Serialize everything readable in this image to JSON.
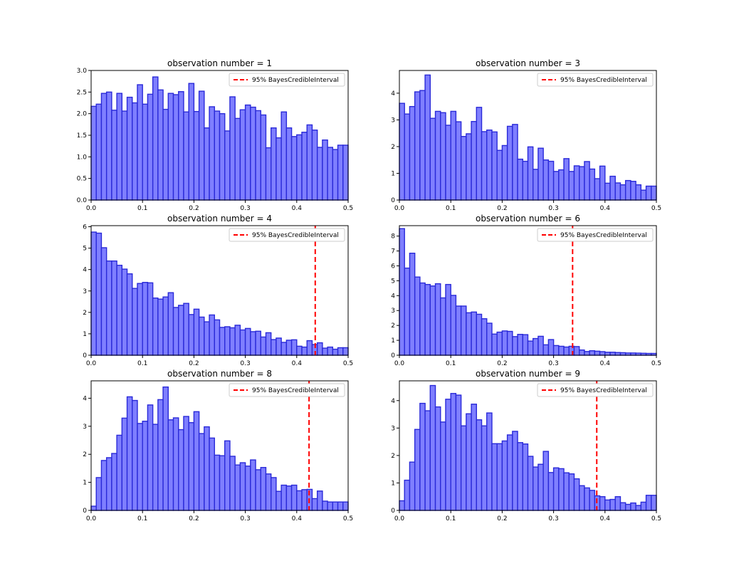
{
  "chart_data": [
    {
      "type": "bar",
      "title": "observation number = 1",
      "xlim": [
        0,
        0.5
      ],
      "ylim": [
        0,
        3.0
      ],
      "xticks": [
        "0.0",
        "0.1",
        "0.2",
        "0.3",
        "0.4",
        "0.5"
      ],
      "yticks": [
        "0.0",
        "0.5",
        "1.0",
        "1.5",
        "2.0",
        "2.5",
        "3.0"
      ],
      "legend": "95% BayesCredibleInterval",
      "legend_position": "top-right",
      "credible_interval": null,
      "bin_width": 0.01,
      "values": [
        2.17,
        2.22,
        2.47,
        2.5,
        2.08,
        2.47,
        2.06,
        2.38,
        2.25,
        2.67,
        2.22,
        2.45,
        2.85,
        2.55,
        2.1,
        2.47,
        2.44,
        2.51,
        2.04,
        2.7,
        2.05,
        2.52,
        1.67,
        2.16,
        2.06,
        2.0,
        1.6,
        2.39,
        1.89,
        2.09,
        2.2,
        2.15,
        2.07,
        1.97,
        1.21,
        1.67,
        1.44,
        2.04,
        1.67,
        1.47,
        1.51,
        1.57,
        1.74,
        1.62,
        1.22,
        1.39,
        1.22,
        1.17,
        1.27,
        1.27
      ]
    },
    {
      "type": "bar",
      "title": "observation number = 3",
      "xlim": [
        0,
        0.5
      ],
      "ylim": [
        0,
        4.85
      ],
      "xticks": [
        "0.0",
        "0.1",
        "0.2",
        "0.3",
        "0.4",
        "0.5"
      ],
      "yticks": [
        "0",
        "1",
        "2",
        "3",
        "4"
      ],
      "legend": "95% BayesCredibleInterval",
      "legend_position": "top-right",
      "credible_interval": null,
      "bin_width": 0.01,
      "values": [
        3.62,
        3.22,
        3.5,
        4.05,
        4.1,
        4.68,
        3.06,
        3.32,
        3.27,
        2.8,
        3.32,
        2.93,
        2.38,
        2.48,
        2.94,
        3.47,
        2.56,
        2.62,
        2.55,
        1.86,
        2.04,
        2.76,
        2.83,
        1.53,
        1.45,
        1.99,
        1.15,
        1.94,
        1.5,
        1.45,
        1.07,
        1.13,
        1.55,
        1.07,
        1.28,
        1.25,
        1.44,
        1.16,
        0.8,
        1.27,
        0.63,
        0.89,
        0.64,
        0.57,
        0.73,
        0.7,
        0.57,
        0.37,
        0.52,
        0.52
      ]
    },
    {
      "type": "bar",
      "title": "observation number = 4",
      "xlim": [
        0,
        0.5
      ],
      "ylim": [
        0,
        6.05
      ],
      "xticks": [
        "0.0",
        "0.1",
        "0.2",
        "0.3",
        "0.4",
        "0.5"
      ],
      "yticks": [
        "0",
        "1",
        "2",
        "3",
        "4",
        "5",
        "6"
      ],
      "legend": "95% BayesCredibleInterval",
      "legend_position": "top-right",
      "credible_interval": 0.436,
      "bin_width": 0.01,
      "values": [
        5.75,
        5.7,
        5.02,
        4.4,
        4.4,
        4.2,
        4.02,
        3.8,
        3.12,
        3.35,
        3.4,
        3.38,
        2.67,
        2.62,
        2.72,
        2.92,
        2.23,
        2.33,
        2.42,
        1.9,
        2.15,
        1.78,
        1.56,
        1.88,
        1.65,
        1.3,
        1.33,
        1.28,
        1.4,
        1.18,
        1.25,
        1.1,
        1.12,
        0.85,
        1.05,
        0.73,
        0.8,
        0.6,
        0.7,
        0.72,
        0.42,
        0.38,
        0.68,
        0.5,
        0.58,
        0.33,
        0.38,
        0.28,
        0.35,
        0.35
      ]
    },
    {
      "type": "bar",
      "title": "observation number = 6",
      "xlim": [
        0,
        0.5
      ],
      "ylim": [
        0,
        8.7
      ],
      "xticks": [
        "0.0",
        "0.1",
        "0.2",
        "0.3",
        "0.4",
        "0.5"
      ],
      "yticks": [
        "0",
        "1",
        "2",
        "3",
        "4",
        "5",
        "6",
        "7",
        "8"
      ],
      "legend": "95% BayesCredibleInterval",
      "legend_position": "top-right",
      "credible_interval": 0.337,
      "bin_width": 0.01,
      "values": [
        8.5,
        5.85,
        6.85,
        5.25,
        4.85,
        4.75,
        4.65,
        4.8,
        3.85,
        4.75,
        4.02,
        3.3,
        3.3,
        2.85,
        2.9,
        2.75,
        2.45,
        2.15,
        1.42,
        1.55,
        1.63,
        1.6,
        1.25,
        1.4,
        1.38,
        0.95,
        1.12,
        1.27,
        0.7,
        1.05,
        0.65,
        0.6,
        0.55,
        0.6,
        0.58,
        0.35,
        0.25,
        0.3,
        0.27,
        0.24,
        0.2,
        0.2,
        0.18,
        0.17,
        0.15,
        0.15,
        0.14,
        0.13,
        0.12,
        0.12
      ]
    },
    {
      "type": "bar",
      "title": "observation number = 8",
      "xlim": [
        0,
        0.5
      ],
      "ylim": [
        0,
        4.62
      ],
      "xticks": [
        "0.0",
        "0.1",
        "0.2",
        "0.3",
        "0.4",
        "0.5"
      ],
      "yticks": [
        "0",
        "1",
        "2",
        "3",
        "4"
      ],
      "legend": "95% BayesCredibleInterval",
      "legend_position": "top-right",
      "credible_interval": 0.424,
      "bin_width": 0.01,
      "values": [
        0.15,
        1.17,
        1.78,
        1.88,
        2.03,
        2.68,
        3.29,
        4.05,
        3.92,
        3.1,
        3.18,
        3.76,
        3.07,
        3.95,
        4.4,
        3.23,
        3.3,
        2.88,
        3.35,
        3.13,
        3.52,
        2.74,
        2.98,
        2.58,
        1.97,
        1.95,
        2.48,
        1.93,
        1.62,
        1.7,
        1.58,
        1.8,
        1.45,
        1.53,
        1.3,
        1.17,
        0.68,
        0.9,
        0.87,
        0.9,
        0.7,
        0.74,
        0.75,
        0.42,
        0.69,
        0.33,
        0.3,
        0.3,
        0.3,
        0.3
      ]
    },
    {
      "type": "bar",
      "title": "observation number = 9",
      "xlim": [
        0,
        0.5
      ],
      "ylim": [
        0,
        4.72
      ],
      "xticks": [
        "0.0",
        "0.1",
        "0.2",
        "0.3",
        "0.4",
        "0.5"
      ],
      "yticks": [
        "0",
        "1",
        "2",
        "3",
        "4"
      ],
      "legend": "95% BayesCredibleInterval",
      "legend_position": "top-right",
      "credible_interval": 0.384,
      "bin_width": 0.01,
      "values": [
        0.35,
        1.1,
        1.76,
        2.95,
        3.9,
        3.63,
        4.55,
        3.77,
        3.22,
        4.05,
        4.26,
        4.2,
        3.08,
        3.52,
        3.87,
        3.3,
        3.08,
        3.55,
        2.43,
        2.43,
        2.53,
        2.75,
        2.88,
        2.47,
        2.42,
        1.97,
        1.58,
        1.68,
        2.15,
        1.38,
        1.55,
        1.52,
        1.37,
        1.33,
        1.15,
        0.9,
        0.82,
        0.73,
        0.53,
        0.5,
        0.38,
        0.4,
        0.5,
        0.28,
        0.22,
        0.27,
        0.18,
        0.3,
        0.55,
        0.55
      ]
    }
  ],
  "colors": {
    "bar_fill": "#7f7fff",
    "bar_edge": "#2a2ad8",
    "interval_line": "#ff0000"
  }
}
